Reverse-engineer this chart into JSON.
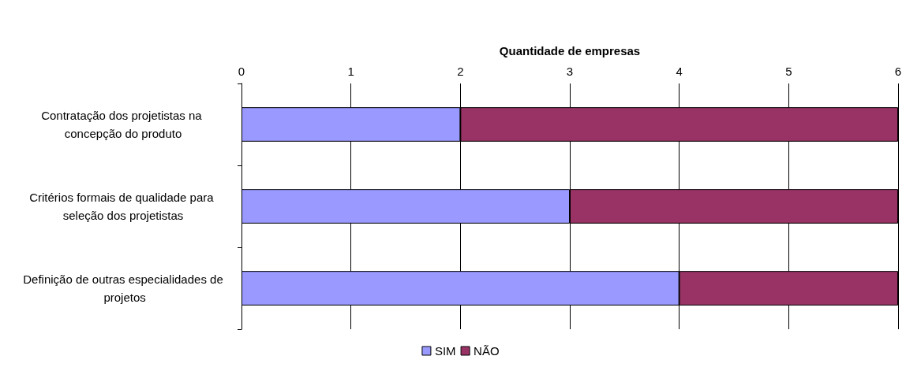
{
  "chart_data": {
    "type": "bar",
    "orientation": "horizontal",
    "stacked": true,
    "xlabel": "Quantidade de empresas",
    "categories": [
      "Contratação dos projetistas na concepção do produto",
      "Critérios formais de qualidade para seleção dos projetistas",
      "Definição de outras especialidades de projetos"
    ],
    "series": [
      {
        "name": "SIM",
        "color": "#9999ff",
        "values": [
          2,
          3,
          4
        ]
      },
      {
        "name": "NÃO",
        "color": "#993366",
        "values": [
          4,
          3,
          2
        ]
      }
    ],
    "xlim": [
      0,
      6
    ],
    "xticks": [
      0,
      1,
      2,
      3,
      4,
      5,
      6
    ],
    "grid": "x",
    "legend": "bottom"
  }
}
